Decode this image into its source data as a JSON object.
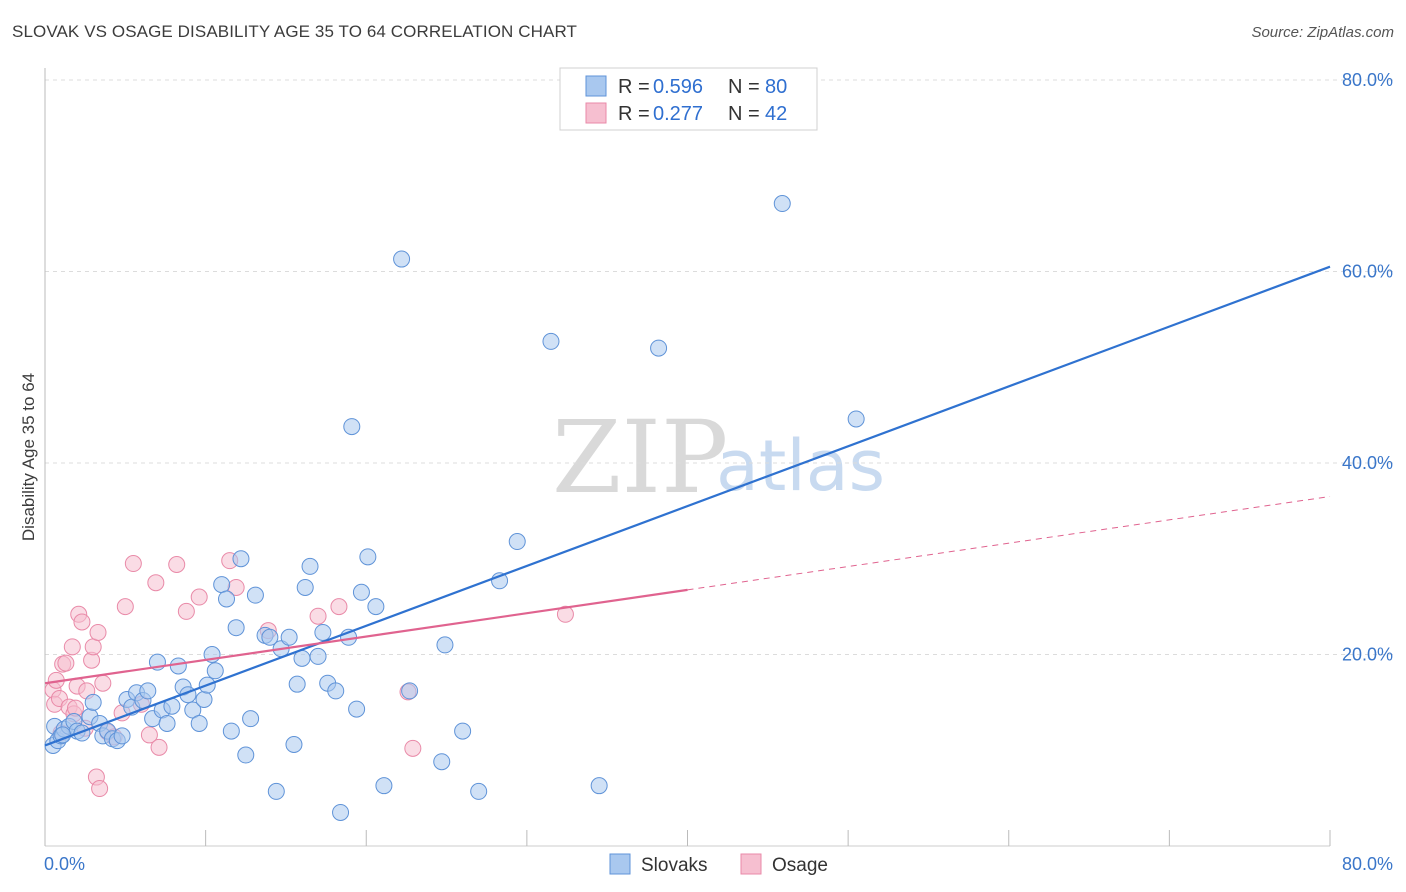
{
  "title": "SLOVAK VS OSAGE DISABILITY AGE 35 TO 64 CORRELATION CHART",
  "source": "Source: ZipAtlas.com",
  "watermark": {
    "zip": "ZIP",
    "atlas": "atlas"
  },
  "colors": {
    "slovaks_fill": "#a9c8ef",
    "slovaks_stroke": "#5f93d8",
    "slovaks_line": "#2f72d0",
    "osage_fill": "#f6bfd0",
    "osage_stroke": "#e98aa8",
    "osage_line": "#e0638f",
    "tick_label": "#3a76c9",
    "grid": "#dcdcdc"
  },
  "legend": {
    "rows": [
      {
        "r_label": "R = ",
        "r_value": "0.596",
        "n_label": "N = ",
        "n_value": "80"
      },
      {
        "r_label": "R = ",
        "r_value": "0.277",
        "n_label": "N = ",
        "n_value": "42"
      }
    ]
  },
  "bottom_legend": [
    "Slovaks",
    "Osage"
  ],
  "chart_data": {
    "type": "scatter",
    "title": "SLOVAK VS OSAGE DISABILITY AGE 35 TO 64 CORRELATION CHART",
    "xlabel": "",
    "ylabel": "Disability Age 35 to 64",
    "xlim": [
      0,
      80
    ],
    "ylim": [
      0,
      80
    ],
    "x_tick_labels": [
      "0.0%",
      "80.0%"
    ],
    "y_ticks": [
      20,
      40,
      60,
      80
    ],
    "y_tick_labels": [
      "20.0%",
      "40.0%",
      "60.0%",
      "80.0%"
    ],
    "grid": true,
    "legend_position": "top-center",
    "series": [
      {
        "name": "Slovaks",
        "r": 0.596,
        "n": 80,
        "trend": {
          "x": [
            0,
            80
          ],
          "y": [
            10.5,
            60.5
          ],
          "dashed_after": null
        },
        "points": [
          [
            0.5,
            10.5
          ],
          [
            0.6,
            12.5
          ],
          [
            0.8,
            11
          ],
          [
            1,
            11.5
          ],
          [
            1.2,
            12.2
          ],
          [
            1.5,
            12.5
          ],
          [
            1.8,
            13
          ],
          [
            2,
            12
          ],
          [
            2.3,
            11.8
          ],
          [
            2.8,
            13.5
          ],
          [
            3,
            15
          ],
          [
            3.4,
            12.8
          ],
          [
            3.6,
            11.5
          ],
          [
            3.9,
            12
          ],
          [
            4.2,
            11.2
          ],
          [
            4.5,
            11
          ],
          [
            4.8,
            11.5
          ],
          [
            5.1,
            15.3
          ],
          [
            5.4,
            14.5
          ],
          [
            5.7,
            16
          ],
          [
            6.1,
            15.2
          ],
          [
            6.4,
            16.2
          ],
          [
            6.7,
            13.3
          ],
          [
            7.0,
            19.2
          ],
          [
            7.3,
            14.2
          ],
          [
            7.6,
            12.8
          ],
          [
            7.9,
            14.6
          ],
          [
            8.3,
            18.8
          ],
          [
            8.6,
            16.6
          ],
          [
            8.9,
            15.8
          ],
          [
            9.2,
            14.2
          ],
          [
            9.6,
            12.8
          ],
          [
            9.9,
            15.3
          ],
          [
            10.1,
            16.8
          ],
          [
            10.4,
            20.0
          ],
          [
            10.6,
            18.3
          ],
          [
            11.0,
            27.3
          ],
          [
            11.3,
            25.8
          ],
          [
            11.6,
            12.0
          ],
          [
            11.9,
            22.8
          ],
          [
            12.2,
            30.0
          ],
          [
            12.5,
            9.5
          ],
          [
            12.8,
            13.3
          ],
          [
            13.1,
            26.2
          ],
          [
            13.7,
            22.0
          ],
          [
            14.0,
            21.8
          ],
          [
            14.4,
            5.7
          ],
          [
            14.7,
            20.6
          ],
          [
            15.2,
            21.8
          ],
          [
            15.5,
            10.6
          ],
          [
            15.7,
            16.9
          ],
          [
            16.0,
            19.6
          ],
          [
            16.2,
            27.0
          ],
          [
            16.5,
            29.2
          ],
          [
            17.0,
            19.8
          ],
          [
            17.3,
            22.3
          ],
          [
            17.6,
            17.0
          ],
          [
            18.1,
            16.2
          ],
          [
            18.4,
            3.5
          ],
          [
            18.9,
            21.8
          ],
          [
            19.1,
            43.8
          ],
          [
            19.4,
            14.3
          ],
          [
            19.7,
            26.5
          ],
          [
            20.1,
            30.2
          ],
          [
            20.6,
            25.0
          ],
          [
            21.1,
            6.3
          ],
          [
            22.2,
            61.3
          ],
          [
            22.7,
            16.2
          ],
          [
            24.7,
            8.8
          ],
          [
            24.9,
            21.0
          ],
          [
            26.0,
            12.0
          ],
          [
            27.0,
            5.7
          ],
          [
            28.3,
            27.7
          ],
          [
            29.4,
            31.8
          ],
          [
            31.5,
            52.7
          ],
          [
            34.5,
            6.3
          ],
          [
            38.2,
            52.0
          ],
          [
            45.9,
            67.1
          ],
          [
            50.5,
            44.6
          ],
          [
            1.1,
            11.6
          ]
        ]
      },
      {
        "name": "Osage",
        "r": 0.277,
        "n": 42,
        "trend": {
          "x": [
            0,
            80
          ],
          "y": [
            17.0,
            36.5
          ],
          "dashed_after": 40
        },
        "points": [
          [
            0.5,
            16.3
          ],
          [
            0.6,
            14.8
          ],
          [
            0.7,
            17.3
          ],
          [
            0.9,
            15.4
          ],
          [
            1.0,
            11.8
          ],
          [
            1.1,
            19.0
          ],
          [
            1.3,
            19.1
          ],
          [
            1.5,
            14.5
          ],
          [
            1.7,
            20.8
          ],
          [
            1.8,
            13.8
          ],
          [
            1.9,
            14.4
          ],
          [
            2.0,
            16.7
          ],
          [
            2.1,
            24.2
          ],
          [
            2.3,
            23.4
          ],
          [
            2.5,
            12.3
          ],
          [
            2.6,
            16.2
          ],
          [
            2.9,
            19.4
          ],
          [
            3.0,
            20.8
          ],
          [
            3.2,
            7.2
          ],
          [
            3.3,
            22.3
          ],
          [
            3.4,
            6.0
          ],
          [
            3.6,
            17.0
          ],
          [
            3.9,
            11.9
          ],
          [
            4.3,
            11.4
          ],
          [
            4.8,
            13.9
          ],
          [
            5.0,
            25.0
          ],
          [
            5.5,
            29.5
          ],
          [
            6.0,
            14.8
          ],
          [
            6.5,
            11.6
          ],
          [
            6.9,
            27.5
          ],
          [
            7.1,
            10.3
          ],
          [
            8.2,
            29.4
          ],
          [
            8.8,
            24.5
          ],
          [
            9.6,
            26.0
          ],
          [
            11.5,
            29.8
          ],
          [
            11.9,
            27.0
          ],
          [
            13.9,
            22.5
          ],
          [
            17.0,
            24.0
          ],
          [
            18.3,
            25.0
          ],
          [
            22.6,
            16.1
          ],
          [
            22.9,
            10.2
          ],
          [
            32.4,
            24.2
          ]
        ]
      }
    ]
  }
}
